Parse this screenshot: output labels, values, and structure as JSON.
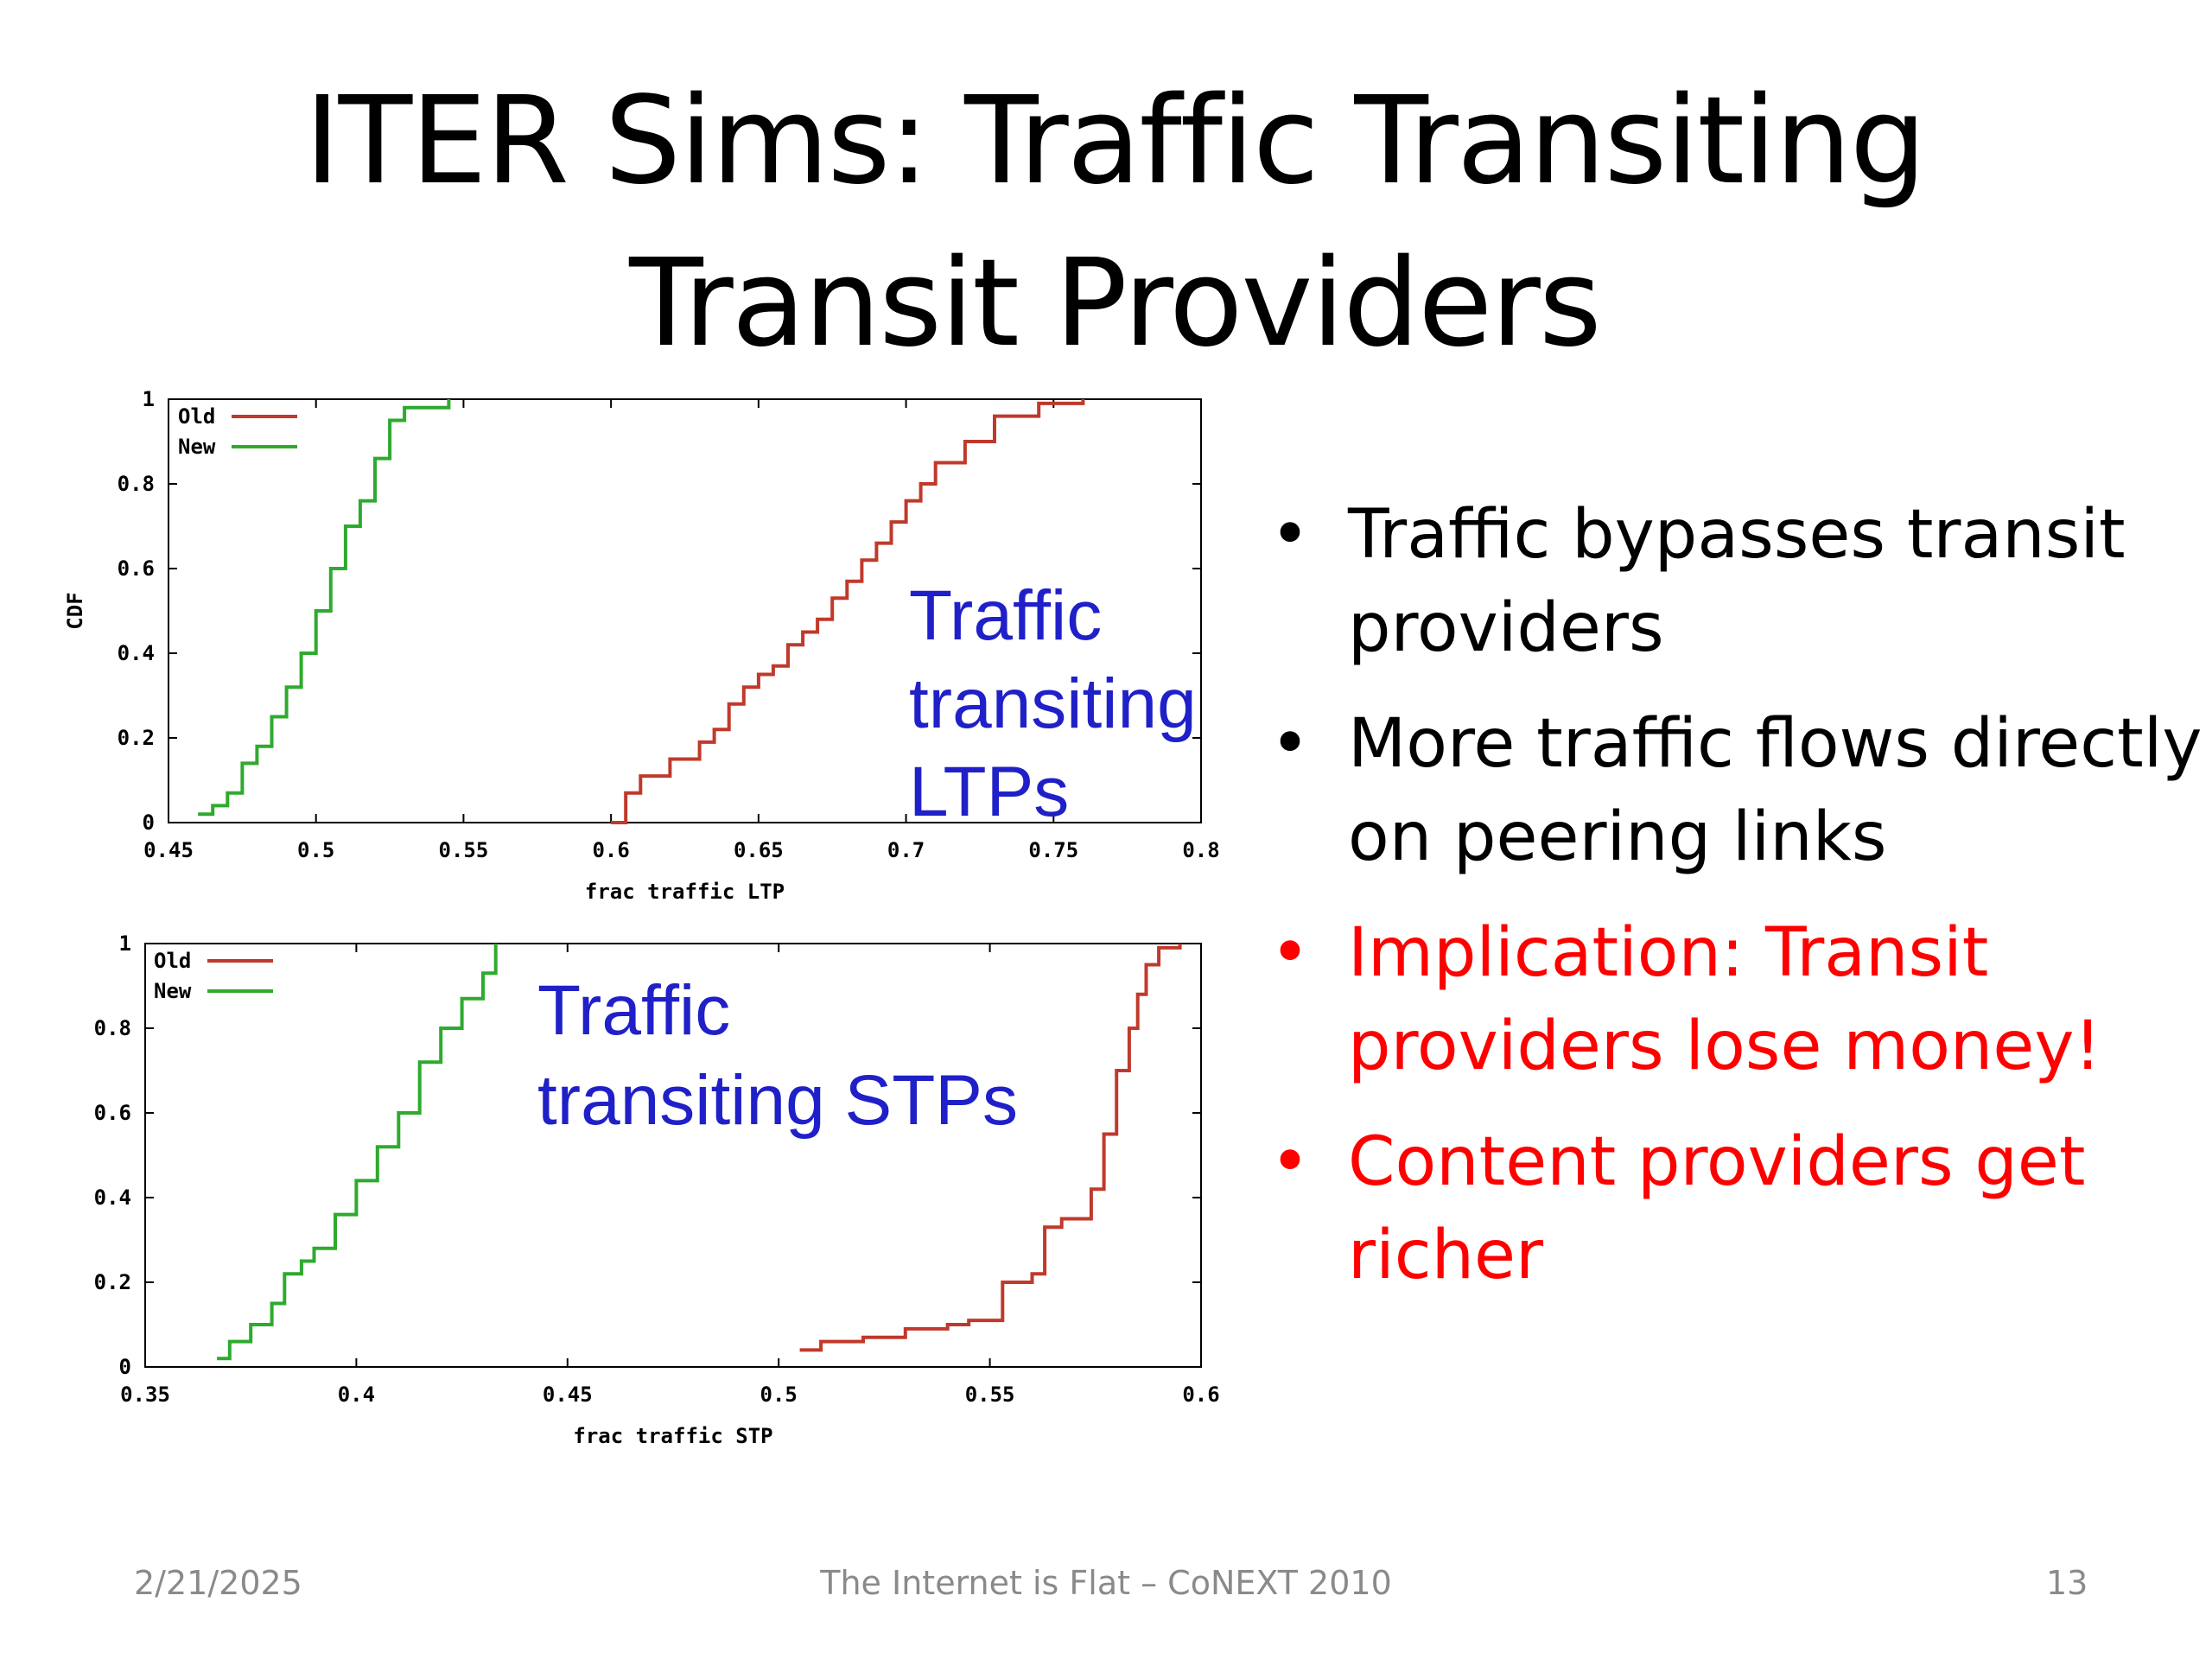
{
  "slide": {
    "title": "ITER Sims: Traffic Transiting Transit Providers",
    "bullets": [
      {
        "text": "Traffic bypasses transit providers",
        "color": "#000000"
      },
      {
        "text": "More traffic flows directly on peering links",
        "color": "#000000"
      },
      {
        "text": "Implication: Transit providers lose money!",
        "color": "#ff0000"
      },
      {
        "text": "Content providers get richer",
        "color": "#ff0000"
      }
    ],
    "footer": {
      "date": "2/21/2025",
      "center": "The Internet is Flat – CoNEXT 2010",
      "page": "13"
    }
  },
  "chart_data": [
    {
      "type": "line",
      "title": "",
      "overlay_text": [
        "Traffic",
        "transiting",
        "LTPs"
      ],
      "xlabel": "frac traffic LTP",
      "ylabel": "CDF",
      "xlim": [
        0.45,
        0.8
      ],
      "ylim": [
        0,
        1
      ],
      "xticks": [
        "0.45",
        "0.5",
        "0.55",
        "0.6",
        "0.65",
        "0.7",
        "0.75",
        "0.8"
      ],
      "yticks": [
        "0",
        "0.2",
        "0.4",
        "0.6",
        "0.8",
        "1"
      ],
      "legend": "top-left",
      "series": [
        {
          "name": "Old",
          "color": "#c0392b",
          "x": [
            0.6,
            0.605,
            0.61,
            0.62,
            0.63,
            0.635,
            0.64,
            0.645,
            0.65,
            0.655,
            0.66,
            0.665,
            0.67,
            0.675,
            0.68,
            0.685,
            0.69,
            0.695,
            0.7,
            0.705,
            0.71,
            0.72,
            0.73,
            0.745,
            0.76
          ],
          "y": [
            0.0,
            0.07,
            0.11,
            0.15,
            0.19,
            0.22,
            0.28,
            0.32,
            0.35,
            0.37,
            0.42,
            0.45,
            0.48,
            0.53,
            0.57,
            0.62,
            0.66,
            0.71,
            0.76,
            0.8,
            0.85,
            0.9,
            0.96,
            0.99,
            1.0
          ]
        },
        {
          "name": "New",
          "color": "#2eaa2e",
          "x": [
            0.46,
            0.465,
            0.47,
            0.475,
            0.48,
            0.485,
            0.49,
            0.495,
            0.5,
            0.505,
            0.51,
            0.515,
            0.52,
            0.525,
            0.53,
            0.545
          ],
          "y": [
            0.02,
            0.04,
            0.07,
            0.14,
            0.18,
            0.25,
            0.32,
            0.4,
            0.5,
            0.6,
            0.7,
            0.76,
            0.86,
            0.95,
            0.98,
            1.0
          ]
        }
      ]
    },
    {
      "type": "line",
      "title": "",
      "overlay_text": [
        "Traffic",
        "transiting STPs"
      ],
      "xlabel": "frac traffic STP",
      "ylabel": "",
      "xlim": [
        0.35,
        0.6
      ],
      "ylim": [
        0,
        1
      ],
      "xticks": [
        "0.35",
        "0.4",
        "0.45",
        "0.5",
        "0.55",
        "0.6"
      ],
      "yticks": [
        "0",
        "0.2",
        "0.4",
        "0.6",
        "0.8",
        "1"
      ],
      "legend": "top-left",
      "series": [
        {
          "name": "Old",
          "color": "#c0392b",
          "x": [
            0.505,
            0.51,
            0.52,
            0.53,
            0.54,
            0.545,
            0.55,
            0.553,
            0.56,
            0.563,
            0.567,
            0.57,
            0.574,
            0.577,
            0.58,
            0.583,
            0.585,
            0.587,
            0.59,
            0.595
          ],
          "y": [
            0.04,
            0.06,
            0.07,
            0.09,
            0.1,
            0.11,
            0.11,
            0.2,
            0.22,
            0.33,
            0.35,
            0.35,
            0.42,
            0.55,
            0.7,
            0.8,
            0.88,
            0.95,
            0.99,
            1.0
          ]
        },
        {
          "name": "New",
          "color": "#2eaa2e",
          "x": [
            0.367,
            0.37,
            0.375,
            0.38,
            0.383,
            0.387,
            0.39,
            0.395,
            0.4,
            0.405,
            0.41,
            0.415,
            0.42,
            0.425,
            0.43,
            0.433
          ],
          "y": [
            0.02,
            0.06,
            0.1,
            0.15,
            0.22,
            0.25,
            0.28,
            0.36,
            0.44,
            0.52,
            0.6,
            0.72,
            0.8,
            0.87,
            0.93,
            1.0
          ]
        }
      ]
    }
  ]
}
